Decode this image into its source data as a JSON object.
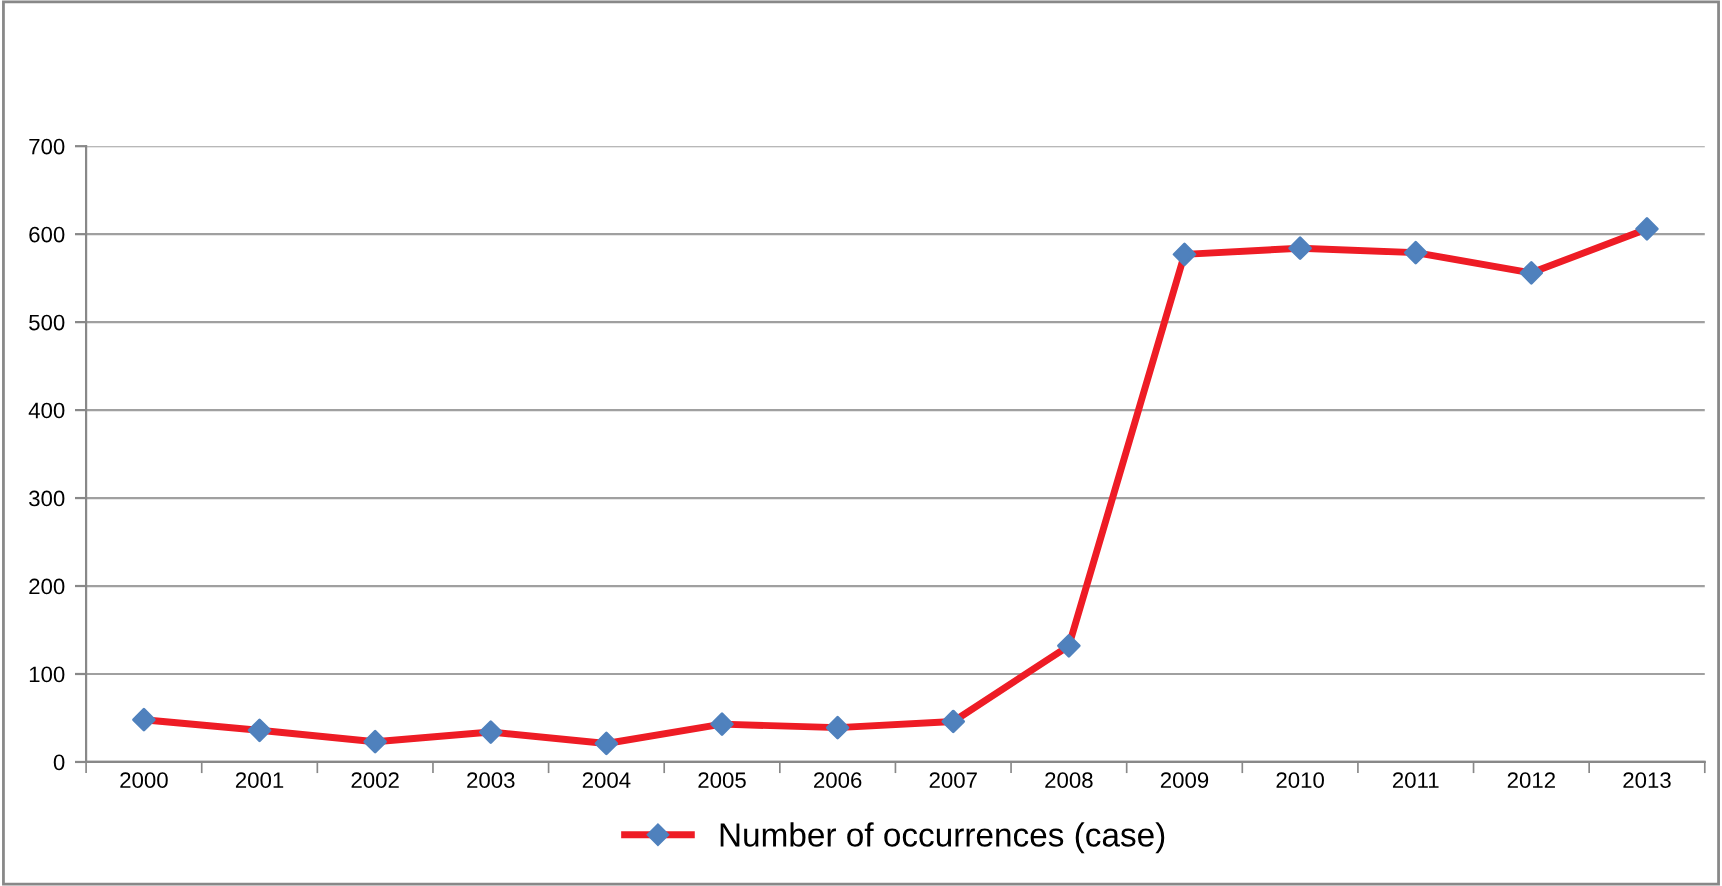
{
  "chart_data": {
    "type": "line",
    "categories": [
      "2000",
      "2001",
      "2002",
      "2003",
      "2004",
      "2005",
      "2006",
      "2007",
      "2008",
      "2009",
      "2010",
      "2011",
      "2012",
      "2013"
    ],
    "series": [
      {
        "name": "Number of occurrences (case)",
        "color": "#ee1c25",
        "colors": [
          "#4f81bd",
          "#4f81bd",
          "#4f81bd",
          "#4f81bd",
          "#4f81bd",
          "#4f81bd",
          "#4f81bd",
          "#4f81bd",
          "#4f81bd",
          "#4f81bd",
          "#4f81bd",
          "#4f81bd",
          "#4f81bd",
          "#4f81bd"
        ],
        "values": [
          48,
          36,
          23,
          34,
          21,
          43,
          39,
          46,
          132,
          577,
          584,
          579,
          556,
          606
        ]
      }
    ],
    "ylim": [
      0,
      700
    ],
    "yticks": [
      0,
      100,
      200,
      300,
      400,
      500,
      600,
      700
    ],
    "grid": "y",
    "legend": "bottom",
    "marker": "diamond",
    "line_style": "solid"
  }
}
